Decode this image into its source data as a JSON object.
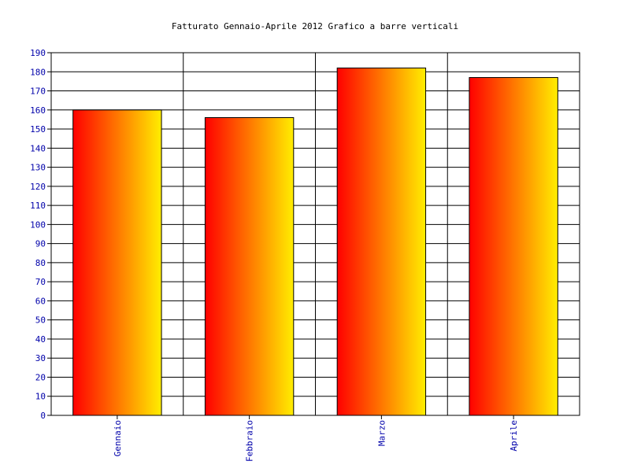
{
  "chart_data": {
    "type": "bar",
    "title": "Fatturato Gennaio-Aprile 2012 Grafico a barre verticali",
    "categories": [
      "Gennaio",
      "Febbraio",
      "Marzo",
      "Aprile"
    ],
    "values": [
      160,
      156,
      182,
      177
    ],
    "gradient": [
      "#ff0000",
      "#ffee00"
    ],
    "ylim": [
      0,
      190
    ],
    "yticks": [
      0,
      10,
      20,
      30,
      40,
      50,
      60,
      70,
      80,
      90,
      100,
      110,
      120,
      130,
      140,
      150,
      160,
      170,
      180,
      190
    ],
    "grid": true
  }
}
